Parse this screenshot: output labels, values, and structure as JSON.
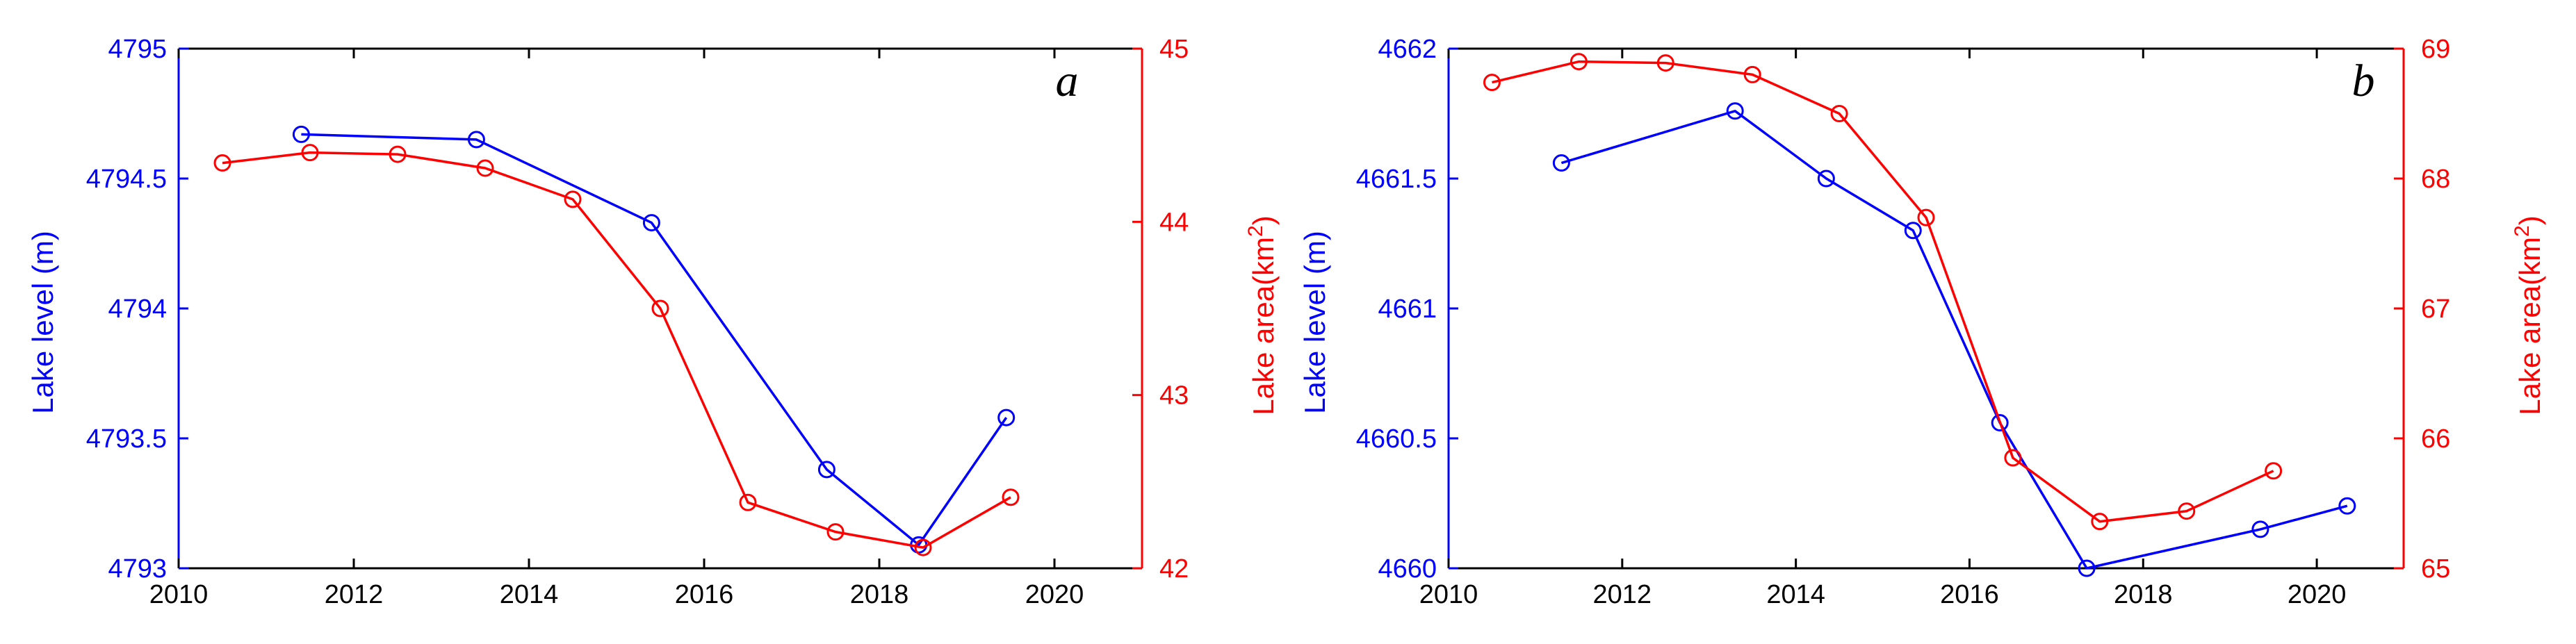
{
  "chart_data": [
    {
      "type": "line",
      "panel_label": "a",
      "xlabel": "",
      "xlim": [
        2010,
        2021
      ],
      "xticks": [
        2010,
        2012,
        2014,
        2016,
        2018,
        2020
      ],
      "y_left": {
        "label": "Lake level (m)",
        "color": "#0000FF",
        "lim": [
          4793,
          4795
        ],
        "ticks": [
          4793,
          4793.5,
          4794,
          4794.5,
          4795
        ],
        "tick_labels": [
          "4793",
          "4793.5",
          "4794",
          "4794.5",
          "4795"
        ]
      },
      "y_right": {
        "label": "Lake area(km",
        "label_sup": "2",
        "label_tail": ")",
        "color": "#FF0000",
        "lim": [
          42,
          45
        ],
        "ticks": [
          42,
          43,
          44,
          45
        ],
        "tick_labels": [
          "42",
          "43",
          "44",
          "45"
        ]
      },
      "series": [
        {
          "axis": "left",
          "color": "#0000FF",
          "x": [
            2011.4,
            2013.4,
            2015.4,
            2017.4,
            2018.45,
            2019.45
          ],
          "y": [
            4794.67,
            4794.65,
            4794.33,
            4793.38,
            4793.09,
            4793.58
          ]
        },
        {
          "axis": "right",
          "color": "#FF0000",
          "x": [
            2010.5,
            2011.5,
            2012.5,
            2013.5,
            2014.5,
            2015.5,
            2016.5,
            2017.5,
            2018.5,
            2019.5
          ],
          "y": [
            44.34,
            44.4,
            44.39,
            44.31,
            44.13,
            43.5,
            42.38,
            42.21,
            42.12,
            42.41
          ]
        }
      ]
    },
    {
      "type": "line",
      "panel_label": "b",
      "xlabel": "",
      "xlim": [
        2010,
        2021
      ],
      "xticks": [
        2010,
        2012,
        2014,
        2016,
        2018,
        2020
      ],
      "y_left": {
        "label": "Lake level (m)",
        "color": "#0000FF",
        "lim": [
          4660,
          4662
        ],
        "ticks": [
          4660,
          4660.5,
          4661,
          4661.5,
          4662
        ],
        "tick_labels": [
          "4660",
          "4660.5",
          "4661",
          "4661.5",
          "4662"
        ]
      },
      "y_right": {
        "label": "Lake area(km",
        "label_sup": "2",
        "label_tail": ")",
        "color": "#FF0000",
        "lim": [
          65,
          69
        ],
        "ticks": [
          65,
          66,
          67,
          68,
          69
        ],
        "tick_labels": [
          "65",
          "66",
          "67",
          "68",
          "69"
        ]
      },
      "series": [
        {
          "axis": "left",
          "color": "#0000FF",
          "x": [
            2011.3,
            2013.3,
            2014.35,
            2015.35,
            2016.35,
            2017.35,
            2019.35,
            2020.35
          ],
          "y": [
            4661.56,
            4661.76,
            4661.5,
            4661.3,
            4660.56,
            4660.0,
            4660.15,
            4660.24
          ]
        },
        {
          "axis": "right",
          "color": "#FF0000",
          "x": [
            2010.5,
            2011.5,
            2012.5,
            2013.5,
            2014.5,
            2015.5,
            2016.5,
            2017.5,
            2018.5,
            2019.5
          ],
          "y": [
            68.74,
            68.9,
            68.89,
            68.8,
            68.5,
            67.7,
            65.85,
            65.36,
            65.44,
            65.75
          ]
        }
      ]
    }
  ]
}
